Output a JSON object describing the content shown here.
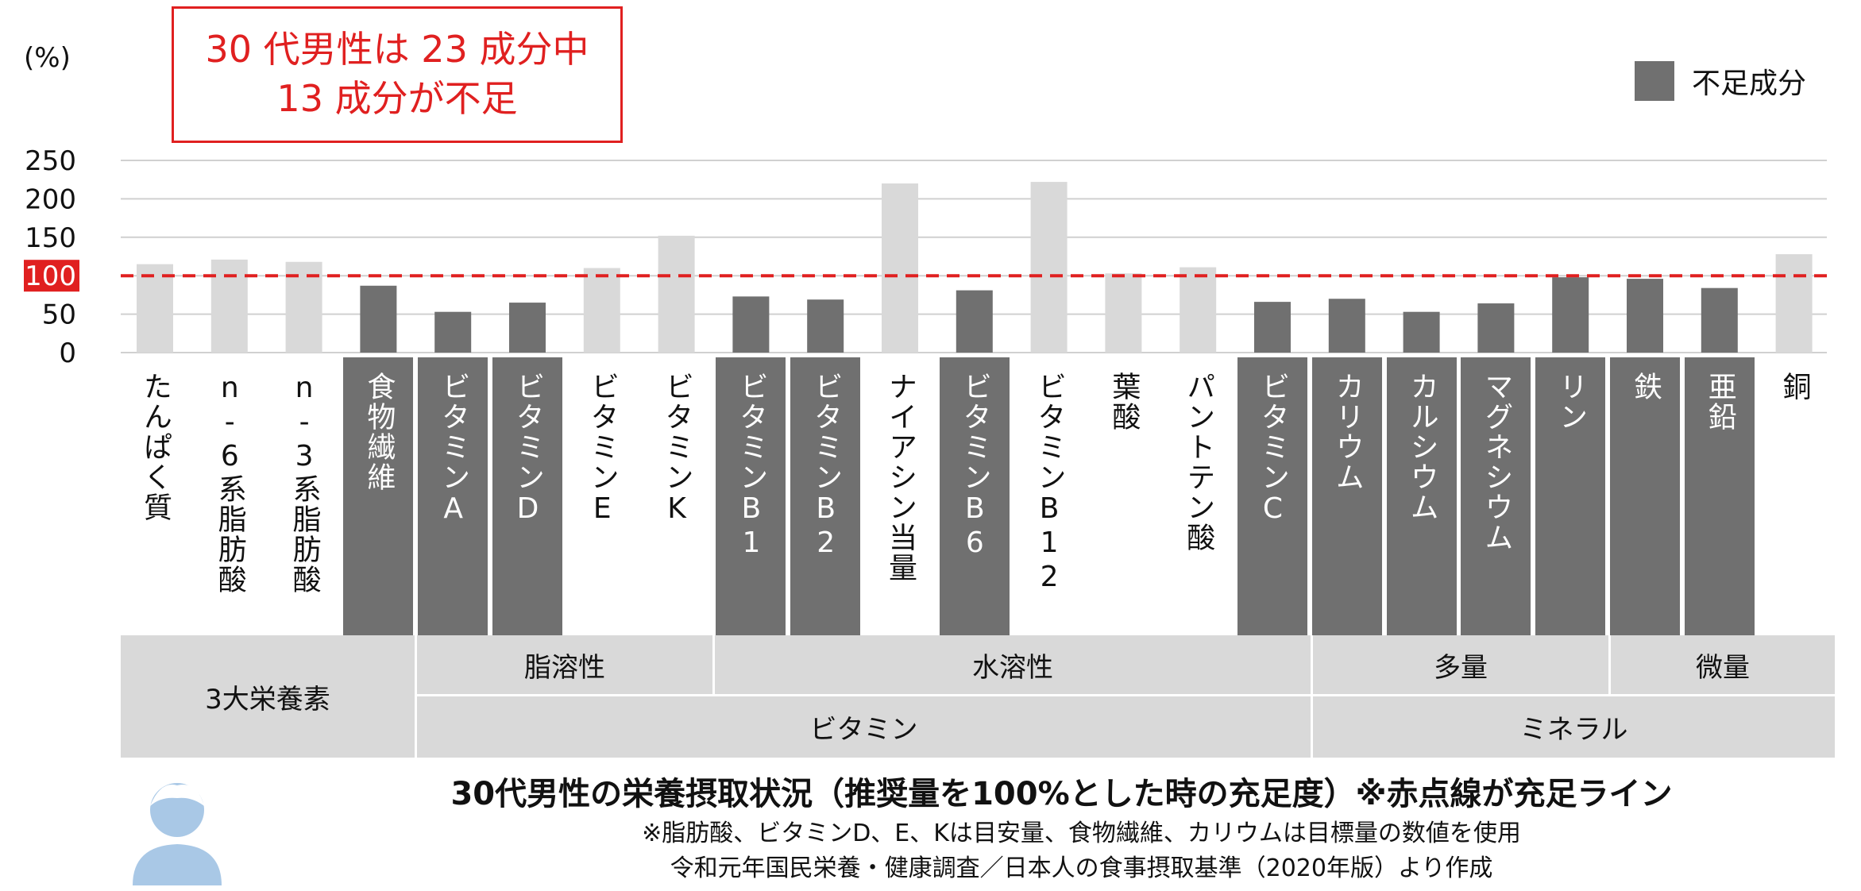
{
  "y_unit": "(%)",
  "callout": {
    "line1": "30 代男性は 23 成分中",
    "line2": "13 成分が不足"
  },
  "legend": {
    "label": "不足成分"
  },
  "colors": {
    "deficient": "#707070",
    "sufficient": "#d9d9d9",
    "threshold": "#e02020",
    "grid": "#d0d0d0"
  },
  "chart_data": {
    "type": "bar",
    "ylim": [
      0,
      250
    ],
    "yticks": [
      0,
      50,
      100,
      150,
      200,
      250
    ],
    "threshold": 100,
    "categories": [
      "たんぱく質",
      "n-6系脂肪酸",
      "n-3系脂肪酸",
      "食物繊維",
      "ビタミンA",
      "ビタミンD",
      "ビタミンE",
      "ビタミンK",
      "ビタミンB1",
      "ビタミンB2",
      "ナイアシン当量",
      "ビタミンB6",
      "ビタミンB12",
      "葉酸",
      "パントテン酸",
      "ビタミンC",
      "カリウム",
      "カルシウム",
      "マグネシウム",
      "リン",
      "鉄",
      "亜鉛",
      "銅"
    ],
    "values": [
      115,
      121,
      118,
      87,
      53,
      65,
      110,
      152,
      73,
      69,
      220,
      81,
      222,
      103,
      111,
      66,
      70,
      53,
      64,
      98,
      96,
      84,
      128
    ],
    "deficient": [
      false,
      false,
      false,
      true,
      true,
      true,
      false,
      false,
      true,
      true,
      false,
      true,
      false,
      false,
      false,
      true,
      true,
      true,
      true,
      true,
      true,
      true,
      false
    ]
  },
  "groups": {
    "macro": "3大栄養素",
    "fat_soluble": "脂溶性",
    "water_soluble": "水溶性",
    "major": "多量",
    "trace": "微量",
    "vitamin": "ビタミン",
    "mineral": "ミネラル"
  },
  "footer": {
    "title": "30代男性の栄養摂取状況（推奨量を100%とした時の充足度）※赤点線が充足ライン",
    "note1": "※脂肪酸、ビタミンD、E、Kは目安量、食物繊維、カリウムは目標量の数値を使用",
    "note2": "令和元年国民栄養・健康調査／日本人の食事摂取基準（2020年版）より作成"
  }
}
